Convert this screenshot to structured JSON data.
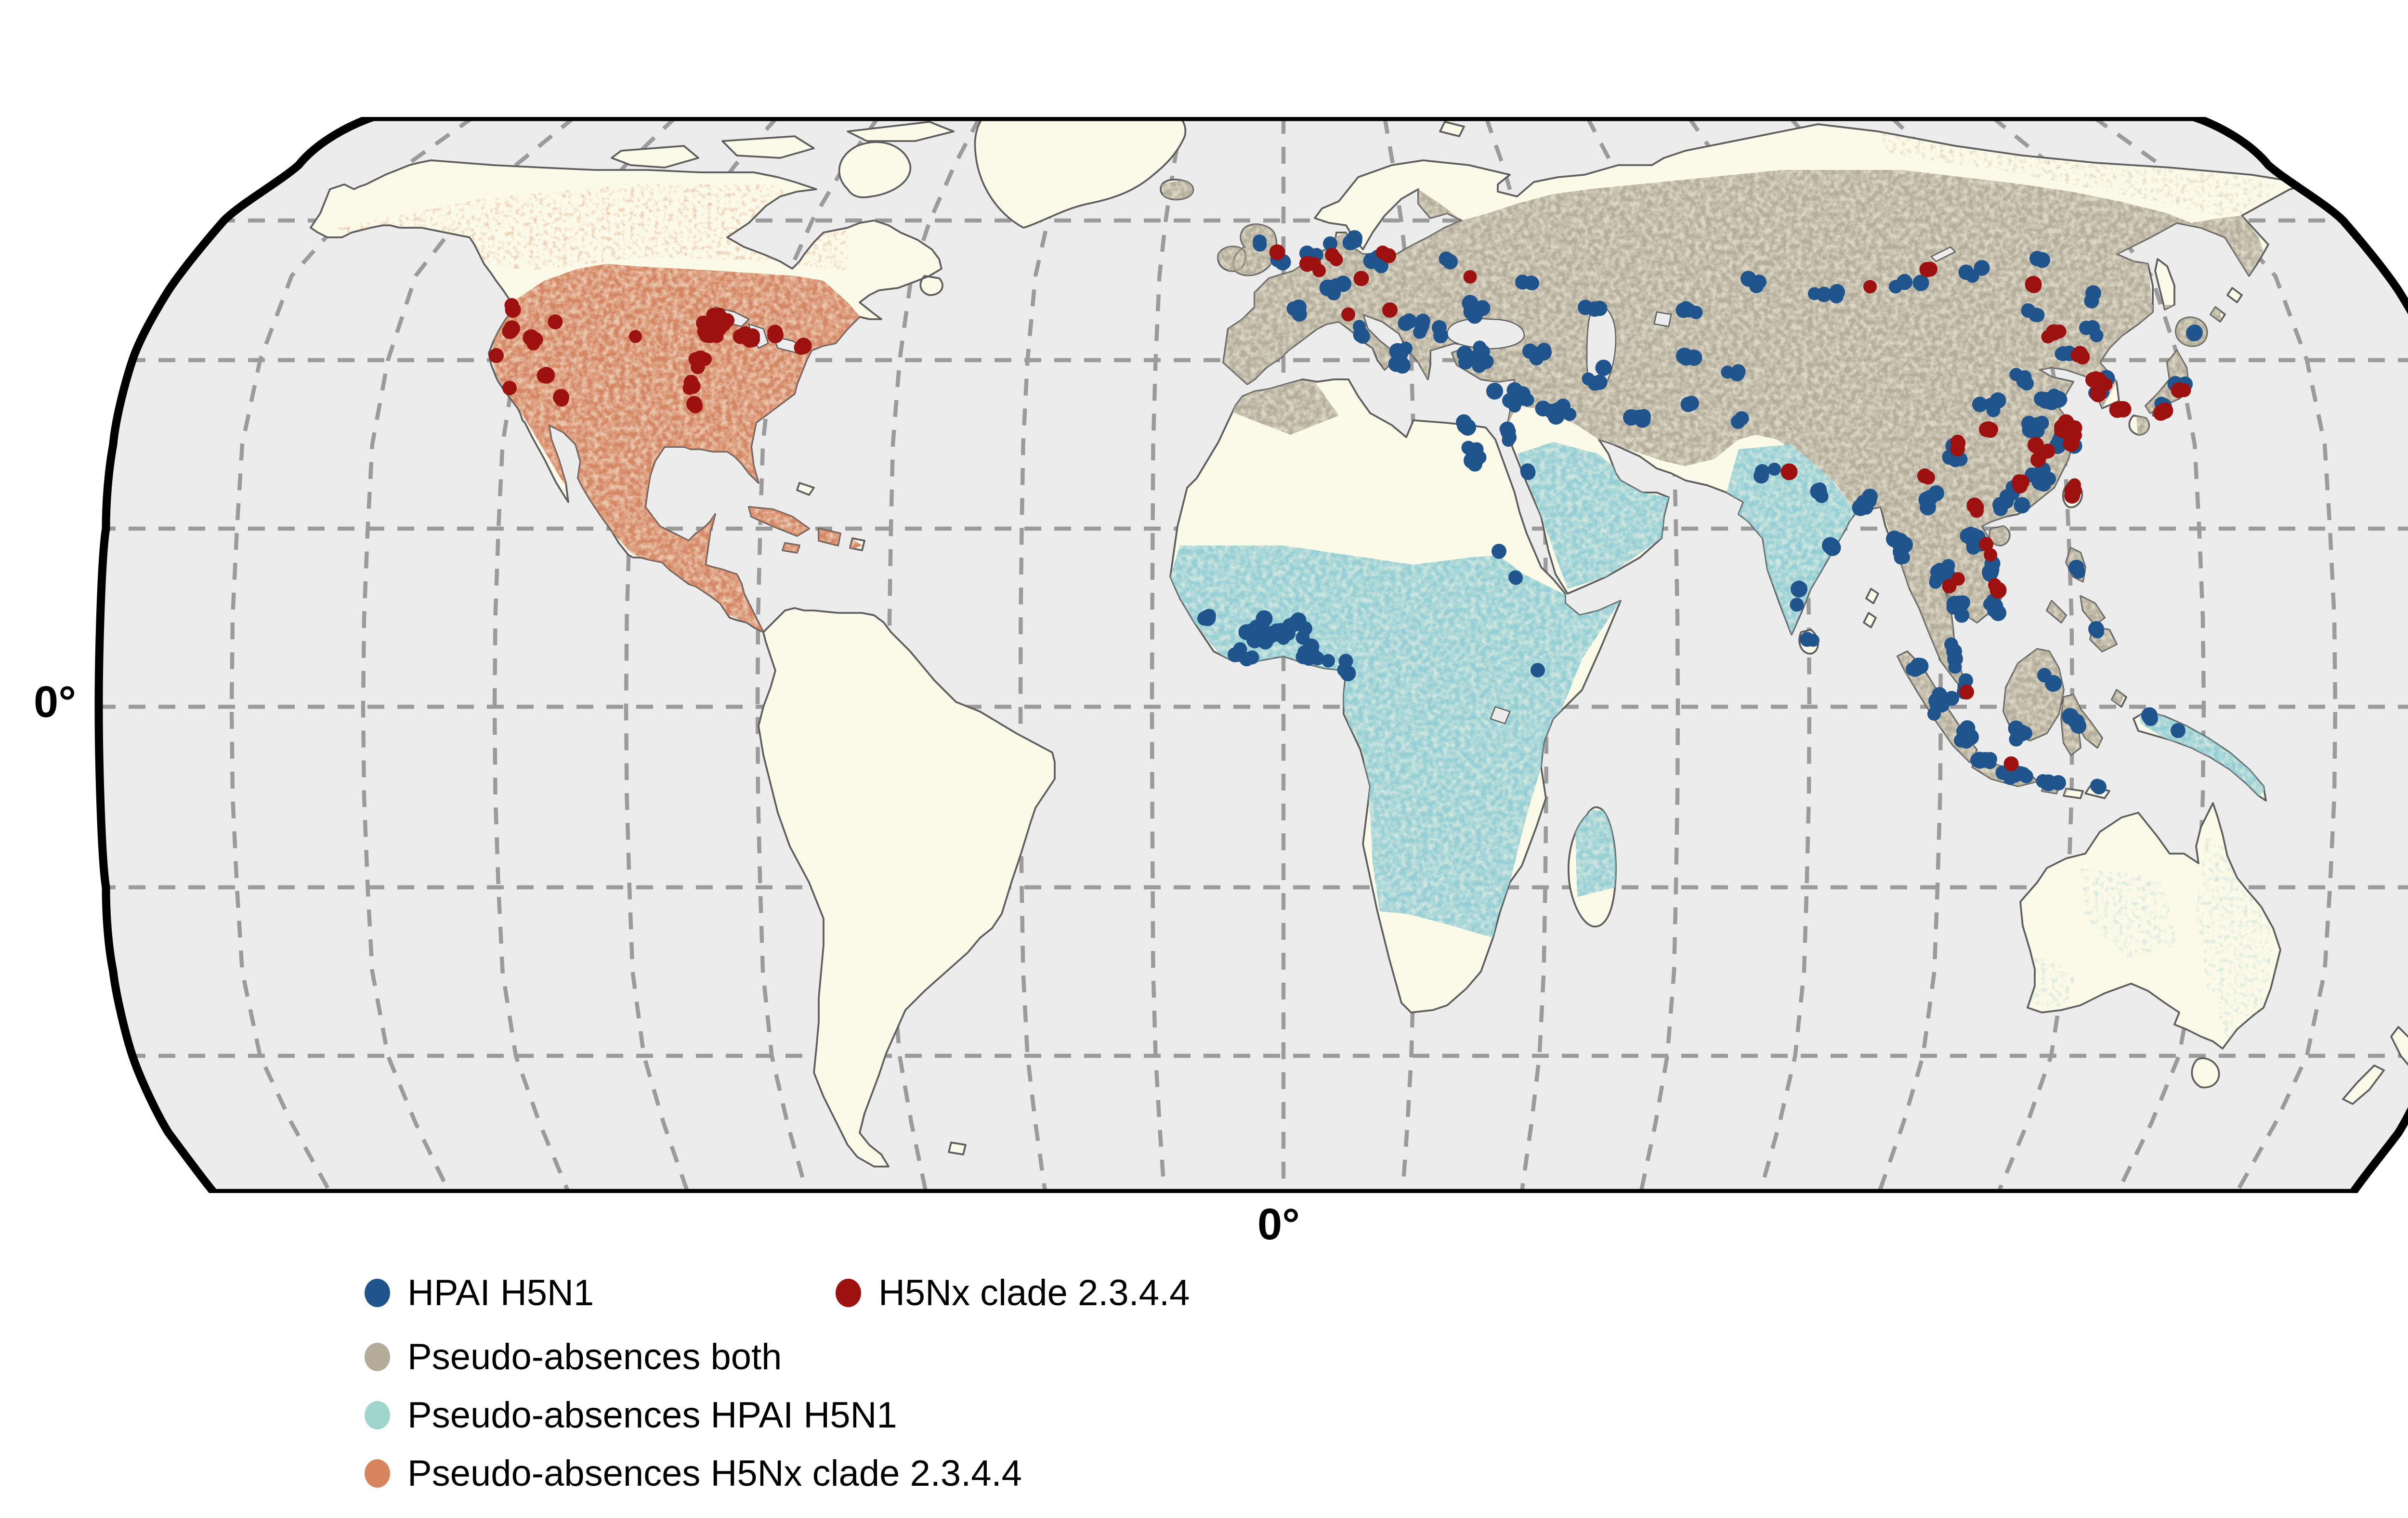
{
  "axes": {
    "equator_label": "0°",
    "prime_meridian_label": "0°"
  },
  "legend": {
    "items": [
      {
        "key": "h5n1",
        "label": "HPAI H5N1",
        "color": "#1f548c"
      },
      {
        "key": "h5nx",
        "label": "H5Nx clade 2.3.4.4",
        "color": "#9d1111"
      },
      {
        "key": "pa_both",
        "label": "Pseudo-absences both",
        "color": "#b4ac99"
      },
      {
        "key": "pa_h5n1",
        "label": "Pseudo-absences HPAI H5N1",
        "color": "#9ed5cf"
      },
      {
        "key": "pa_h5nx",
        "label": "Pseudo-absences H5Nx clade 2.3.4.4",
        "color": "#d8845f"
      }
    ]
  },
  "map": {
    "colors": {
      "ocean": "#ececec",
      "land": "#fbf9e7",
      "coast": "#5e5e5e",
      "border": "#000000",
      "graticule": "#9b9b9b",
      "pa_both": "#b1a997",
      "pa_h5n1": "#8fccd4",
      "pa_h5nx": "#d2805c",
      "h5n1": "#1f548c",
      "h5nx": "#9d1111"
    },
    "clusters": {
      "h5n1": [
        [
          522,
          52,
          2,
          3,
          3
        ],
        [
          533,
          61,
          2,
          3,
          2
        ],
        [
          548,
          57,
          5,
          6,
          4
        ],
        [
          561,
          51,
          3,
          4,
          3
        ],
        [
          573,
          59,
          4,
          7,
          3
        ],
        [
          556,
          70,
          4,
          6,
          4
        ],
        [
          540,
          81,
          3,
          5,
          4
        ],
        [
          566,
          89,
          3,
          4,
          3
        ],
        [
          580,
          99,
          6,
          6,
          5
        ],
        [
          592,
          88,
          8,
          8,
          5
        ],
        [
          610,
          79,
          6,
          9,
          4
        ],
        [
          612,
          100,
          8,
          8,
          4
        ],
        [
          630,
          117,
          9,
          8,
          5
        ],
        [
          626,
          131,
          5,
          3,
          5
        ],
        [
          645,
          122,
          6,
          6,
          4
        ],
        [
          638,
          98,
          6,
          5,
          3
        ],
        [
          663,
          109,
          4,
          4,
          4
        ],
        [
          680,
          124,
          4,
          5,
          4
        ],
        [
          700,
          119,
          3,
          4,
          3
        ],
        [
          636,
          146,
          2,
          3,
          3
        ],
        [
          600,
          60,
          2,
          3,
          2
        ],
        [
          636,
          70,
          3,
          4,
          3
        ],
        [
          660,
          80,
          3,
          4,
          3
        ],
        [
          700,
          79,
          4,
          7,
          3
        ],
        [
          730,
          69,
          3,
          5,
          2
        ],
        [
          760,
          74,
          4,
          7,
          3
        ],
        [
          790,
          69,
          4,
          7,
          3
        ],
        [
          820,
          64,
          3,
          5,
          2
        ],
        [
          848,
          59,
          2,
          3,
          2
        ],
        [
          869,
          74,
          2,
          3,
          3
        ],
        [
          700,
          100,
          3,
          5,
          3
        ],
        [
          721,
          107,
          3,
          4,
          3
        ],
        [
          612,
          140,
          6,
          3,
          6
        ],
        [
          608,
          128,
          3,
          3,
          3
        ],
        [
          622,
          180,
          2,
          2,
          3
        ],
        [
          630,
          190,
          2,
          3,
          3
        ],
        [
          640,
          228,
          1,
          2,
          2
        ],
        [
          530,
          214,
          20,
          16,
          6
        ],
        [
          501,
          208,
          3,
          4,
          2
        ],
        [
          516,
          224,
          4,
          6,
          3
        ],
        [
          545,
          224,
          6,
          7,
          3
        ],
        [
          559,
          229,
          3,
          3,
          3
        ],
        [
          722,
          125,
          2,
          3,
          2
        ],
        [
          734,
          149,
          3,
          4,
          3
        ],
        [
          755,
          158,
          4,
          5,
          3
        ],
        [
          774,
          161,
          6,
          4,
          3
        ],
        [
          760,
          178,
          3,
          4,
          4
        ],
        [
          748,
          199,
          2,
          3,
          4
        ],
        [
          752,
          217,
          2,
          2,
          2
        ],
        [
          790,
          180,
          6,
          4,
          6
        ],
        [
          806,
          190,
          9,
          6,
          7
        ],
        [
          820,
          175,
          8,
          4,
          5
        ],
        [
          826,
          189,
          6,
          3,
          5
        ],
        [
          828,
          204,
          6,
          3,
          5
        ],
        [
          812,
          204,
          7,
          5,
          5
        ],
        [
          810,
          224,
          4,
          3,
          5
        ],
        [
          816,
          237,
          3,
          2,
          3
        ],
        [
          836,
          159,
          8,
          6,
          5
        ],
        [
          848,
          150,
          8,
          6,
          4
        ],
        [
          856,
          136,
          7,
          5,
          5
        ],
        [
          846,
          128,
          6,
          5,
          4
        ],
        [
          852,
          117,
          6,
          5,
          3
        ],
        [
          840,
          110,
          5,
          5,
          3
        ],
        [
          826,
          120,
          4,
          5,
          4
        ],
        [
          812,
          140,
          5,
          5,
          5
        ],
        [
          800,
          159,
          4,
          4,
          4
        ],
        [
          856,
          98,
          4,
          4,
          3
        ],
        [
          868,
          88,
          3,
          4,
          3
        ],
        [
          846,
          82,
          3,
          4,
          2
        ],
        [
          872,
          112,
          5,
          3,
          5
        ],
        [
          897,
          120,
          3,
          3,
          3
        ],
        [
          907,
          112,
          4,
          4,
          2
        ],
        [
          913,
          90,
          2,
          3,
          2
        ],
        [
          796,
          228,
          6,
          4,
          4
        ],
        [
          806,
          244,
          8,
          4,
          5
        ],
        [
          816,
          257,
          8,
          4,
          4
        ],
        [
          825,
          267,
          8,
          5,
          2
        ],
        [
          838,
          273,
          8,
          6,
          2
        ],
        [
          851,
          277,
          4,
          4,
          2
        ],
        [
          840,
          254,
          4,
          5,
          4
        ],
        [
          852,
          234,
          3,
          3,
          4
        ],
        [
          862,
          251,
          4,
          3,
          5
        ],
        [
          871,
          277,
          2,
          2,
          2
        ],
        [
          863,
          188,
          2,
          2,
          3
        ],
        [
          872,
          213,
          2,
          2,
          2
        ],
        [
          893,
          249,
          2,
          2,
          2
        ],
        [
          903,
          257,
          1,
          2,
          2
        ]
      ],
      "h5nx": [
        [
          297,
          88,
          24,
          8,
          6
        ],
        [
          311,
          92,
          6,
          4,
          3
        ],
        [
          322,
          89,
          2,
          2,
          2
        ],
        [
          333,
          95,
          2,
          2,
          2
        ],
        [
          291,
          101,
          4,
          3,
          3
        ],
        [
          287,
          111,
          3,
          2,
          4
        ],
        [
          288,
          120,
          2,
          2,
          2
        ],
        [
          214,
          79,
          2,
          2,
          2
        ],
        [
          212,
          89,
          3,
          3,
          2
        ],
        [
          206,
          99,
          2,
          2,
          2
        ],
        [
          222,
          94,
          3,
          3,
          3
        ],
        [
          231,
          85,
          1,
          2,
          2
        ],
        [
          227,
          107,
          2,
          2,
          2
        ],
        [
          233,
          117,
          2,
          2,
          2
        ],
        [
          211,
          112,
          1,
          2,
          2
        ],
        [
          262,
          91,
          1,
          2,
          2
        ],
        [
          545,
          62,
          4,
          4,
          2
        ],
        [
          553,
          58,
          2,
          2,
          2
        ],
        [
          530,
          57,
          1,
          2,
          2
        ],
        [
          576,
          56,
          2,
          2,
          2
        ],
        [
          566,
          68,
          1,
          2,
          2
        ],
        [
          578,
          80,
          1,
          2,
          2
        ],
        [
          560,
          82,
          1,
          2,
          2
        ],
        [
          610,
          66,
          1,
          2,
          2
        ],
        [
          800,
          64,
          2,
          3,
          2
        ],
        [
          775,
          70,
          1,
          2,
          2
        ],
        [
          845,
          70,
          2,
          3,
          2
        ],
        [
          852,
          90,
          3,
          3,
          3
        ],
        [
          864,
          100,
          3,
          2,
          2
        ],
        [
          872,
          111,
          8,
          3,
          6
        ],
        [
          880,
          121,
          3,
          2,
          2
        ],
        [
          897,
          122,
          3,
          3,
          2
        ],
        [
          906,
          115,
          2,
          2,
          2
        ],
        [
          858,
          130,
          8,
          5,
          5
        ],
        [
          848,
          140,
          6,
          4,
          4
        ],
        [
          838,
          152,
          4,
          3,
          3
        ],
        [
          861,
          155,
          5,
          2,
          4
        ],
        [
          826,
          128,
          4,
          3,
          3
        ],
        [
          814,
          136,
          3,
          3,
          3
        ],
        [
          800,
          150,
          2,
          2,
          2
        ],
        [
          820,
          162,
          3,
          2,
          2
        ],
        [
          826,
          180,
          2,
          2,
          3
        ],
        [
          830,
          197,
          2,
          2,
          3
        ],
        [
          812,
          194,
          2,
          2,
          2
        ],
        [
          818,
          240,
          1,
          2,
          2
        ],
        [
          835,
          269,
          1,
          2,
          2
        ],
        [
          743,
          148,
          1,
          2,
          2
        ]
      ]
    },
    "regions": [
      {
        "key": "pa_both",
        "name": "pseudo-absences-both-region"
      },
      {
        "key": "pa_h5n1",
        "name": "pseudo-absences-hpai-h5n1-region"
      },
      {
        "key": "pa_h5nx",
        "name": "pseudo-absences-h5nx-region"
      }
    ]
  }
}
